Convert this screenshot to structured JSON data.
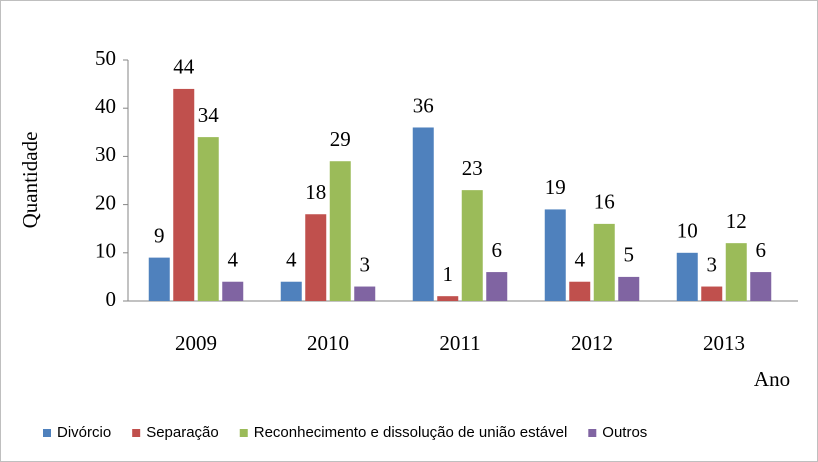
{
  "chart_data": {
    "type": "bar",
    "y_label": "Quantidade",
    "x_label": "Ano",
    "categories": [
      "2009",
      "2010",
      "2011",
      "2012",
      "2013"
    ],
    "series": [
      {
        "name": "Divórcio",
        "color": "#4f81bd",
        "values": [
          9,
          4,
          36,
          19,
          10
        ]
      },
      {
        "name": "Separação",
        "color": "#c0504d",
        "values": [
          44,
          18,
          1,
          4,
          3
        ]
      },
      {
        "name": "Reconhecimento e dissolução de união estável",
        "color": "#9bbb59",
        "values": [
          34,
          29,
          23,
          16,
          12
        ]
      },
      {
        "name": "Outros",
        "color": "#8064a2",
        "values": [
          4,
          3,
          6,
          5,
          6
        ]
      }
    ],
    "ylim": [
      0,
      50
    ],
    "yticks": [
      0,
      10,
      20,
      30,
      40,
      50
    ],
    "grid": false,
    "legend": "bottom"
  }
}
